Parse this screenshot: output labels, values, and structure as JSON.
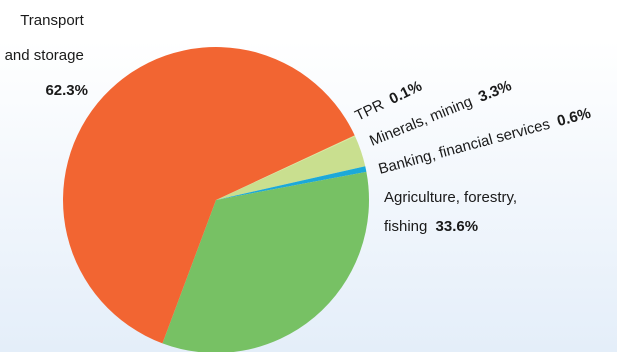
{
  "chart_data": {
    "type": "pie",
    "title": "",
    "slices": [
      {
        "label": "TPR",
        "value": 0.1,
        "display": "0.1%",
        "color": "#d9ec9a"
      },
      {
        "label": "Minerals, mining",
        "value": 3.3,
        "display": "3.3%",
        "color": "#c9df8f"
      },
      {
        "label": "Banking, financial services",
        "value": 0.6,
        "display": "0.6%",
        "color": "#1ca9d8"
      },
      {
        "label_lines": [
          "Agriculture, forestry,",
          "fishing"
        ],
        "value": 33.6,
        "display": "33.6%",
        "color": "#77c164"
      },
      {
        "label_lines": [
          "Transport",
          "and storage"
        ],
        "value": 62.3,
        "display": "62.3%",
        "color": "#f26532"
      }
    ]
  }
}
